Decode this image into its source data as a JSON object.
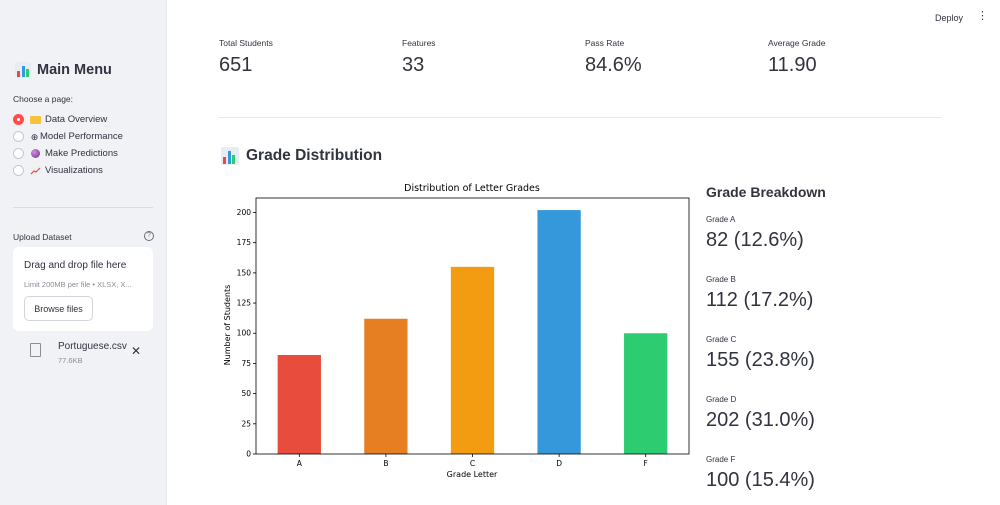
{
  "sidebar": {
    "title": "Main Menu",
    "choose_label": "Choose a page:",
    "pages": [
      {
        "label": "Data Overview",
        "icon": "folder-icon",
        "selected": true
      },
      {
        "label": "Model Performance",
        "icon": "robot-icon",
        "selected": false
      },
      {
        "label": "Make Predictions",
        "icon": "crystal-ball-icon",
        "selected": false
      },
      {
        "label": "Visualizations",
        "icon": "chart-up-icon",
        "selected": false
      }
    ],
    "upload": {
      "label": "Upload Dataset",
      "drop_text": "Drag and drop file here",
      "limit_text": "Limit 200MB per file • XLSX, X...",
      "browse_label": "Browse files",
      "file_name": "Portuguese.csv",
      "file_size": "77.6KB"
    }
  },
  "header": {
    "deploy_label": "Deploy",
    "menu_glyph": "⋮"
  },
  "metrics": [
    {
      "label": "Total Students",
      "value": "651"
    },
    {
      "label": "Features",
      "value": "33"
    },
    {
      "label": "Pass Rate",
      "value": "84.6%"
    },
    {
      "label": "Average Grade",
      "value": "11.90"
    }
  ],
  "section_title": "Grade Distribution",
  "chart_data": {
    "type": "bar",
    "title": "Distribution of Letter Grades",
    "xlabel": "Grade Letter",
    "ylabel": "Number of Students",
    "categories": [
      "A",
      "B",
      "C",
      "D",
      "F"
    ],
    "values": [
      82,
      112,
      155,
      202,
      100
    ],
    "colors": [
      "#e74c3c",
      "#e67e22",
      "#f39c12",
      "#3498db",
      "#2ecc71"
    ],
    "ylim": [
      0,
      212
    ],
    "yticks": [
      0,
      25,
      50,
      75,
      100,
      125,
      150,
      175,
      200
    ],
    "grid": false,
    "legend": "none"
  },
  "breakdown": {
    "title": "Grade Breakdown",
    "items": [
      {
        "label": "Grade A",
        "value": "82 (12.6%)"
      },
      {
        "label": "Grade B",
        "value": "112 (17.2%)"
      },
      {
        "label": "Grade C",
        "value": "155 (23.8%)"
      },
      {
        "label": "Grade D",
        "value": "202 (31.0%)"
      },
      {
        "label": "Grade F",
        "value": "100 (15.4%)"
      }
    ]
  },
  "colors": {
    "accent": "#ff4b4b",
    "sidebar_bg": "#f0f2f6",
    "text": "#31333f"
  }
}
